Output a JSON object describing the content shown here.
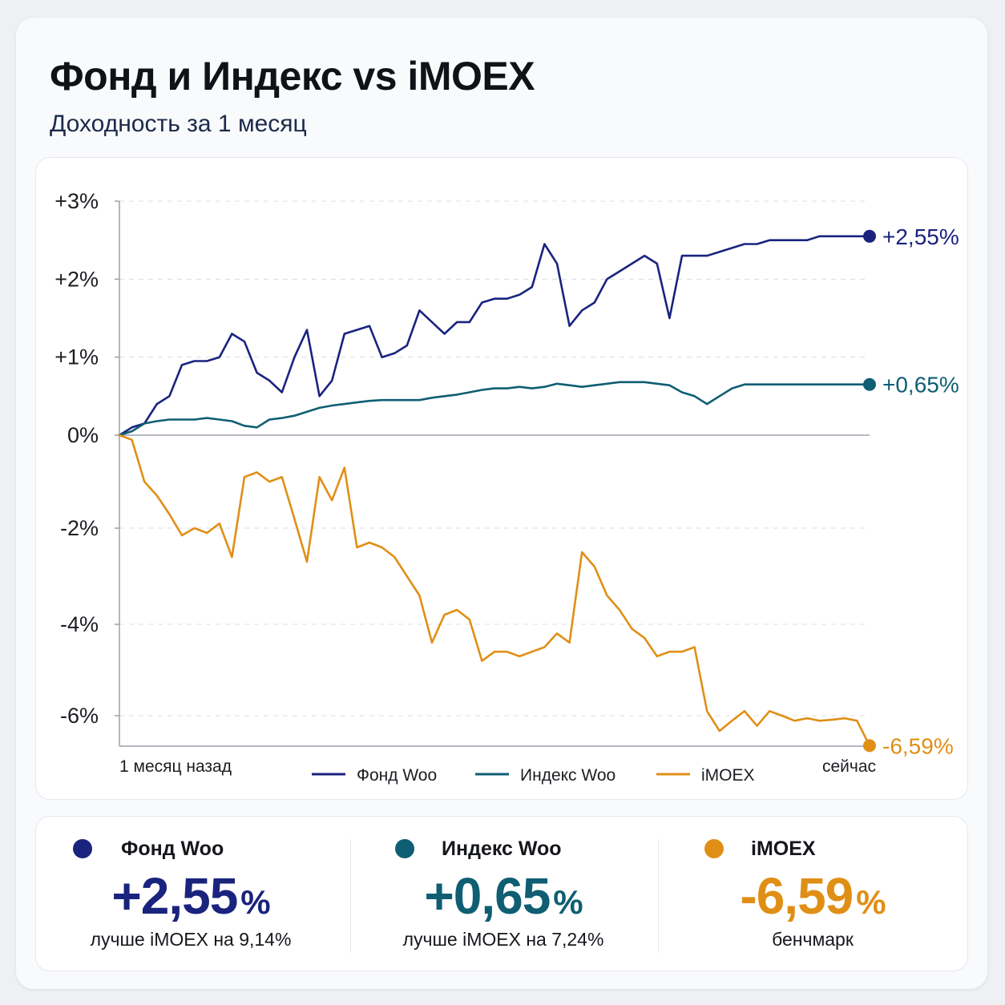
{
  "header": {
    "title": "Фонд и Индекс vs iMOEX",
    "subtitle": "Доходность за 1 месяц"
  },
  "chart_data": {
    "type": "line",
    "title": "Фонд и Индекс vs iMOEX",
    "subtitle": "Доходность за 1 месяц",
    "xlabel": "",
    "ylabel": "",
    "x_start_label": "1 месяц назад",
    "x_end_label": "сейчас",
    "x": [
      0,
      1,
      2,
      3,
      4,
      5,
      6,
      7,
      8,
      9,
      10,
      11,
      12,
      13,
      14,
      15,
      16,
      17,
      18,
      19,
      20,
      21,
      22,
      23,
      24,
      25,
      26,
      27,
      28,
      29,
      30,
      31,
      32,
      33,
      34,
      35,
      36,
      37,
      38,
      39,
      40,
      41,
      42,
      43,
      44,
      45,
      46,
      47,
      48,
      49,
      50,
      51,
      52,
      53,
      54,
      55,
      56,
      57,
      58,
      59,
      60
    ],
    "y_ticks": [
      "+3%",
      "+2%",
      "+1%",
      "0%",
      "-2%",
      "-4%",
      "-6%"
    ],
    "y_tick_values": [
      3,
      2,
      1,
      0,
      -2,
      -4,
      -6
    ],
    "ylim": [
      -6.6,
      3
    ],
    "grid": true,
    "legend_position": "bottom",
    "series": [
      {
        "name": "Фонд Woo",
        "color": "#1a237e",
        "end_label": "+2,55%",
        "values": [
          0,
          0.1,
          0.15,
          0.4,
          0.5,
          0.9,
          0.95,
          0.95,
          1.0,
          1.3,
          1.2,
          0.8,
          0.7,
          0.55,
          1.0,
          1.35,
          0.5,
          0.7,
          1.3,
          1.35,
          1.4,
          1.0,
          1.05,
          1.15,
          1.6,
          1.45,
          1.3,
          1.45,
          1.45,
          1.7,
          1.75,
          1.75,
          1.8,
          1.9,
          2.45,
          2.2,
          1.4,
          1.6,
          1.7,
          2.0,
          2.1,
          2.2,
          2.3,
          2.2,
          1.5,
          2.3,
          2.3,
          2.3,
          2.35,
          2.4,
          2.45,
          2.45,
          2.5,
          2.5,
          2.5,
          2.5,
          2.55,
          2.55,
          2.55,
          2.55,
          2.55
        ]
      },
      {
        "name": "Индекс Woo",
        "color": "#0f5e73",
        "end_label": "+0,65%",
        "values": [
          0,
          0.05,
          0.15,
          0.18,
          0.2,
          0.2,
          0.2,
          0.22,
          0.2,
          0.18,
          0.12,
          0.1,
          0.2,
          0.22,
          0.25,
          0.3,
          0.35,
          0.38,
          0.4,
          0.42,
          0.44,
          0.45,
          0.45,
          0.45,
          0.45,
          0.48,
          0.5,
          0.52,
          0.55,
          0.58,
          0.6,
          0.6,
          0.62,
          0.6,
          0.62,
          0.66,
          0.64,
          0.62,
          0.64,
          0.66,
          0.68,
          0.68,
          0.68,
          0.66,
          0.64,
          0.55,
          0.5,
          0.4,
          0.5,
          0.6,
          0.65,
          0.65,
          0.65,
          0.65,
          0.65,
          0.65,
          0.65,
          0.65,
          0.65,
          0.65,
          0.65
        ]
      },
      {
        "name": "iMOEX",
        "color": "#e08f16",
        "end_label": "-6,59%",
        "values": [
          0,
          -0.1,
          -1.0,
          -1.3,
          -1.7,
          -2.15,
          -2.0,
          -2.1,
          -1.9,
          -2.6,
          -0.9,
          -0.8,
          -1.0,
          -0.9,
          -1.8,
          -2.7,
          -0.9,
          -1.4,
          -0.7,
          -2.4,
          -2.3,
          -2.4,
          -2.6,
          -3.0,
          -3.4,
          -4.4,
          -3.8,
          -3.7,
          -3.9,
          -4.8,
          -4.6,
          -4.6,
          -4.7,
          -4.6,
          -4.5,
          -4.2,
          -4.4,
          -2.5,
          -2.8,
          -3.4,
          -3.7,
          -4.1,
          -4.3,
          -4.7,
          -4.6,
          -4.6,
          -4.5,
          -5.9,
          -6.3,
          -6.1,
          -5.9,
          -6.2,
          -5.9,
          -6.0,
          -6.1,
          -6.05,
          -6.1,
          -6.08,
          -6.05,
          -6.1,
          -6.59
        ]
      }
    ]
  },
  "legend": [
    {
      "label": "Фонд Woo",
      "color": "#1a237e"
    },
    {
      "label": "Индекс Woo",
      "color": "#0f5e73"
    },
    {
      "label": "iMOEX",
      "color": "#e08f16"
    }
  ],
  "summary": [
    {
      "name": "Фонд Woo",
      "value": "+2,55",
      "unit": "%",
      "note": "лучше iMOEX на 9,14%",
      "color": "#1a237e"
    },
    {
      "name": "Индекс Woo",
      "value": "+0,65",
      "unit": "%",
      "note": "лучше iMOEX на 7,24%",
      "color": "#0f5e73"
    },
    {
      "name": "iMOEX",
      "value": "-6,59",
      "unit": "%",
      "note": "бенчмарк",
      "color": "#e08f16"
    }
  ]
}
